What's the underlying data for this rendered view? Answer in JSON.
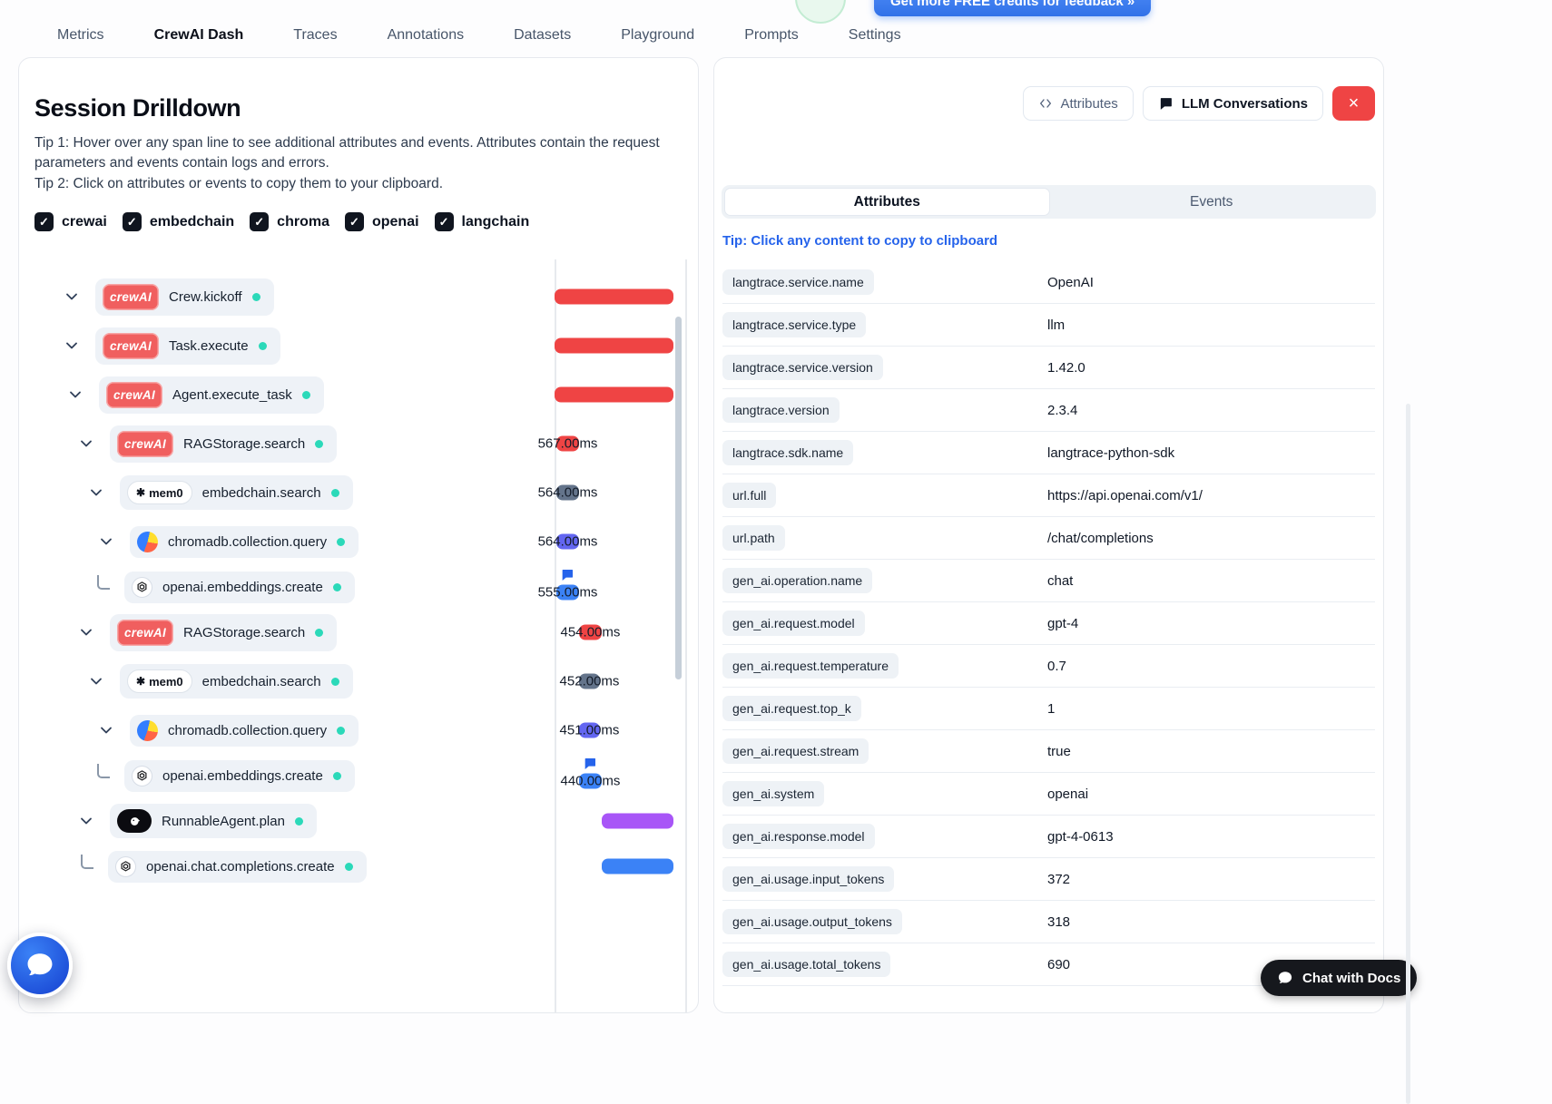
{
  "header": {
    "credits_button": "Get more FREE credits for feedback  »",
    "tabs": [
      {
        "label": "Metrics",
        "active": false
      },
      {
        "label": "CrewAI Dash",
        "active": true
      },
      {
        "label": "Traces",
        "active": false
      },
      {
        "label": "Annotations",
        "active": false
      },
      {
        "label": "Datasets",
        "active": false
      },
      {
        "label": "Playground",
        "active": false
      },
      {
        "label": "Prompts",
        "active": false
      },
      {
        "label": "Settings",
        "active": false
      }
    ]
  },
  "session": {
    "title": "Session Drilldown",
    "tip1": "Tip 1: Hover over any span line to see additional attributes and events. Attributes contain the request parameters and events contain logs and errors.",
    "tip2": "Tip 2: Click on attributes or events to copy them to your clipboard.",
    "filters": [
      {
        "label": "crewai",
        "checked": true
      },
      {
        "label": "embedchain",
        "checked": true
      },
      {
        "label": "chroma",
        "checked": true
      },
      {
        "label": "openai",
        "checked": true
      },
      {
        "label": "langchain",
        "checked": true
      }
    ],
    "spans": [
      {
        "name": "Crew.kickoff",
        "logo": "crewai",
        "indent": 48,
        "elbow": false,
        "duration": "",
        "bubble": false,
        "bar": {
          "left_pct": 0,
          "width_pct": 90.3,
          "color": "#ef4444"
        }
      },
      {
        "name": "Task.execute",
        "logo": "crewai",
        "indent": 48,
        "elbow": false,
        "duration": "",
        "bubble": false,
        "bar": {
          "left_pct": 0,
          "width_pct": 90.3,
          "color": "#ef4444"
        }
      },
      {
        "name": "Agent.execute_task",
        "logo": "crewai",
        "indent": 52,
        "elbow": false,
        "duration": "",
        "bubble": false,
        "bar": {
          "left_pct": 0,
          "width_pct": 90.3,
          "color": "#ef4444"
        }
      },
      {
        "name": "RAGStorage.search",
        "logo": "crewai",
        "indent": 64,
        "elbow": false,
        "duration": "567.00ms",
        "bubble": false,
        "bar": {
          "left_pct": 1.4,
          "width_pct": 17.2,
          "color": "#ef4444"
        }
      },
      {
        "name": "embedchain.search",
        "logo": "mem0",
        "indent": 75,
        "elbow": false,
        "duration": "564.00ms",
        "bubble": false,
        "bar": {
          "left_pct": 1.4,
          "width_pct": 17.2,
          "color": "#64748b"
        }
      },
      {
        "name": "chromadb.collection.query",
        "logo": "chroma",
        "indent": 86,
        "elbow": false,
        "duration": "564.00ms",
        "bubble": false,
        "bar": {
          "left_pct": 1.4,
          "width_pct": 17.2,
          "color": "#6366f1"
        }
      },
      {
        "name": "openai.embeddings.create",
        "logo": "openai",
        "indent": 86,
        "elbow": true,
        "duration": "555.00ms",
        "bubble": true,
        "bar": {
          "left_pct": 1.4,
          "width_pct": 17.2,
          "color": "#3b82f6"
        }
      },
      {
        "name": "RAGStorage.search",
        "logo": "crewai",
        "indent": 64,
        "elbow": false,
        "duration": "454.00ms",
        "bubble": false,
        "bar": {
          "left_pct": 18.6,
          "width_pct": 17.2,
          "color": "#ef4444"
        }
      },
      {
        "name": "embedchain.search",
        "logo": "mem0",
        "indent": 75,
        "elbow": false,
        "duration": "452.00ms",
        "bubble": false,
        "bar": {
          "left_pct": 18.6,
          "width_pct": 15.9,
          "color": "#64748b"
        }
      },
      {
        "name": "chromadb.collection.query",
        "logo": "chroma",
        "indent": 86,
        "elbow": false,
        "duration": "451.00ms",
        "bubble": false,
        "bar": {
          "left_pct": 18.6,
          "width_pct": 15.9,
          "color": "#6366f1"
        }
      },
      {
        "name": "openai.embeddings.create",
        "logo": "openai",
        "indent": 86,
        "elbow": true,
        "duration": "440.00ms",
        "bubble": true,
        "bar": {
          "left_pct": 18.6,
          "width_pct": 17.2,
          "color": "#3b82f6"
        }
      },
      {
        "name": "RunnableAgent.plan",
        "logo": "langchain",
        "indent": 64,
        "elbow": false,
        "duration": "",
        "bubble": false,
        "bar": {
          "left_pct": 35.9,
          "width_pct": 54.5,
          "color": "#a855f7"
        }
      },
      {
        "name": "openai.chat.completions.create",
        "logo": "openai",
        "indent": 68,
        "elbow": true,
        "duration": "",
        "bubble": false,
        "bar": {
          "left_pct": 35.9,
          "width_pct": 54.5,
          "color": "#3b82f6"
        }
      }
    ]
  },
  "details": {
    "attributes_button": "Attributes",
    "llm_conversations_button": "LLM Conversations",
    "tabs": [
      {
        "label": "Attributes",
        "active": true
      },
      {
        "label": "Events",
        "active": false
      }
    ],
    "tip": "Tip: Click any content to copy to clipboard",
    "attributes": [
      {
        "key": "langtrace.service.name",
        "value": "OpenAI"
      },
      {
        "key": "langtrace.service.type",
        "value": "llm"
      },
      {
        "key": "langtrace.service.version",
        "value": "1.42.0"
      },
      {
        "key": "langtrace.version",
        "value": "2.3.4"
      },
      {
        "key": "langtrace.sdk.name",
        "value": "langtrace-python-sdk"
      },
      {
        "key": "url.full",
        "value": "https://api.openai.com/v1/"
      },
      {
        "key": "url.path",
        "value": "/chat/completions"
      },
      {
        "key": "gen_ai.operation.name",
        "value": "chat"
      },
      {
        "key": "gen_ai.request.model",
        "value": "gpt-4"
      },
      {
        "key": "gen_ai.request.temperature",
        "value": "0.7"
      },
      {
        "key": "gen_ai.request.top_k",
        "value": "1"
      },
      {
        "key": "gen_ai.request.stream",
        "value": "true"
      },
      {
        "key": "gen_ai.system",
        "value": "openai"
      },
      {
        "key": "gen_ai.response.model",
        "value": "gpt-4-0613"
      },
      {
        "key": "gen_ai.usage.input_tokens",
        "value": "372"
      },
      {
        "key": "gen_ai.usage.output_tokens",
        "value": "318"
      },
      {
        "key": "gen_ai.usage.total_tokens",
        "value": "690"
      }
    ]
  },
  "widgets": {
    "chat_with_docs": "Chat with Docs"
  },
  "logos": {
    "crewai": "crewAI",
    "mem0": "mem0"
  },
  "icons": {
    "check": "✓",
    "close": "×",
    "mem0_mark": "✱"
  },
  "colors": {
    "crewai_bar": "#ef4444",
    "embedchain_bar": "#64748b",
    "chroma_bar": "#6366f1",
    "openai_bar": "#3b82f6",
    "langchain_bar": "#a855f7",
    "accent_link": "#2563eb",
    "close_button": "#ef4444",
    "status_dot": "#2bd9b9"
  }
}
